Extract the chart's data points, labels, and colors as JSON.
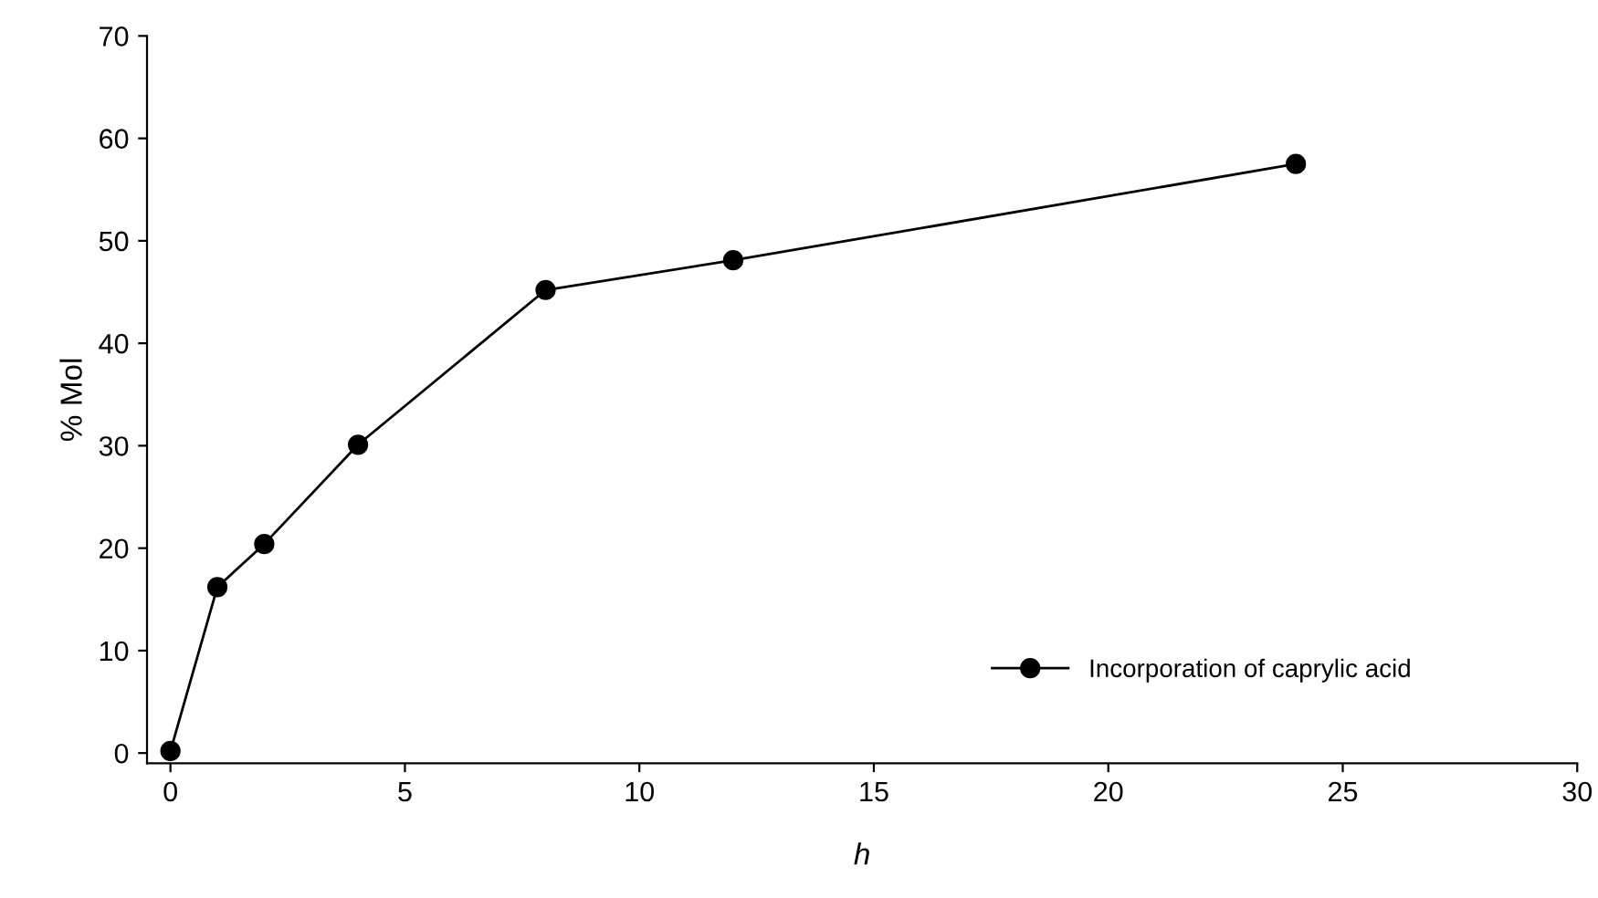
{
  "chart_data": {
    "type": "line",
    "xlabel": "h",
    "ylabel": "% Mol",
    "x": [
      0,
      1,
      2,
      4,
      8,
      12,
      24
    ],
    "series": [
      {
        "name": "Incorporation of caprylic acid",
        "color": "#000000",
        "values": [
          0.2,
          16.2,
          20.4,
          30.1,
          45.2,
          48.1,
          57.5
        ]
      }
    ],
    "xlim": [
      -0.5,
      30
    ],
    "ylim": [
      -1,
      70
    ],
    "xticks": [
      0,
      5,
      10,
      15,
      20,
      25,
      30
    ],
    "yticks": [
      0,
      10,
      20,
      30,
      40,
      50,
      60,
      70
    ],
    "marker": "circle",
    "line_style": "solid",
    "grid": false,
    "legend": "bottom right"
  }
}
